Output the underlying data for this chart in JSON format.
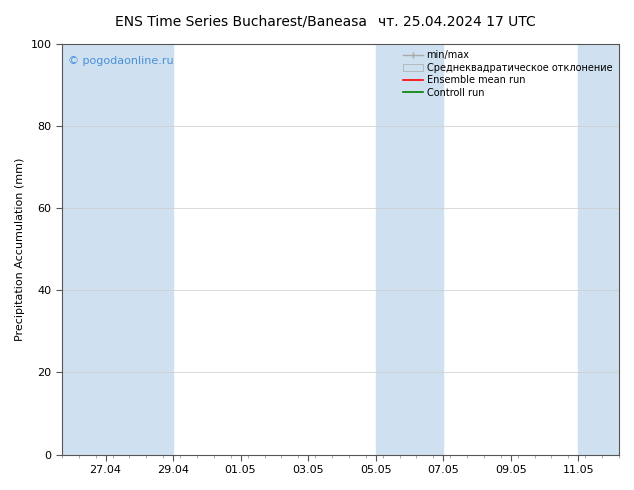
{
  "title_left": "ENS Time Series Bucharest/Baneasa",
  "title_right": "чт. 25.04.2024 17 UTC",
  "ylabel": "Precipitation Accumulation (mm)",
  "ylim": [
    0,
    100
  ],
  "yticks": [
    0,
    20,
    40,
    60,
    80,
    100
  ],
  "watermark": "© pogodaonline.ru",
  "watermark_color": "#4a90d9",
  "background_color": "#ffffff",
  "plot_bg_color": "#ffffff",
  "shade_color": "#cfe0f0",
  "xtick_labels": [
    "27.04",
    "29.04",
    "01.05",
    "03.05",
    "05.05",
    "07.05",
    "09.05",
    "11.05"
  ],
  "legend_labels": [
    "min/max",
    "Среднеквадратическое отклонение",
    "Ensemble mean run",
    "Controll run"
  ],
  "title_fontsize": 10,
  "label_fontsize": 8,
  "tick_fontsize": 8,
  "watermark_fontsize": 8,
  "legend_fontsize": 7
}
